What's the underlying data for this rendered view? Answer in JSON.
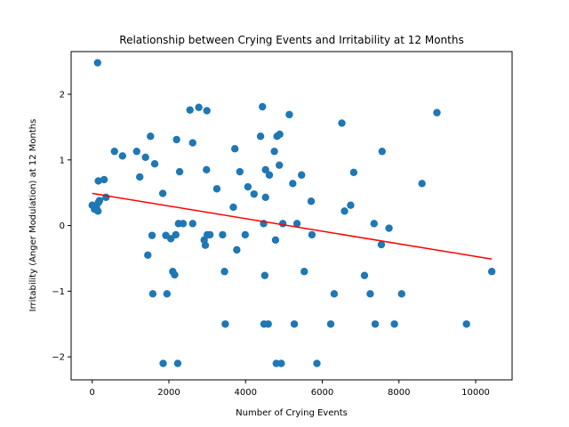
{
  "chart_data": {
    "type": "scatter",
    "title": "Relationship between Crying Events and Irritability at 12 Months",
    "xlabel": "Number of Crying Events",
    "ylabel": "Irritability (Anger Modulation) at 12 Months",
    "xlim": [
      -550,
      10950
    ],
    "ylim": [
      -2.35,
      2.65
    ],
    "x_ticks": [
      0,
      2000,
      4000,
      6000,
      8000,
      10000
    ],
    "x_tick_labels": [
      "0",
      "2000",
      "4000",
      "6000",
      "8000",
      "10000"
    ],
    "y_ticks": [
      -2,
      -1,
      0,
      1,
      2
    ],
    "y_tick_labels": [
      "−2",
      "−1",
      "0",
      "1",
      "2"
    ],
    "grid": false,
    "point_color": "#1f77b4",
    "trend_color": "#ff0000",
    "trend_line": {
      "x": [
        0,
        10420
      ],
      "y": [
        0.49,
        -0.51
      ]
    },
    "points": [
      {
        "x": 140,
        "y": 2.48
      },
      {
        "x": 0,
        "y": 0.31
      },
      {
        "x": 60,
        "y": 0.25
      },
      {
        "x": 110,
        "y": 0.27
      },
      {
        "x": 150,
        "y": 0.22
      },
      {
        "x": 160,
        "y": 0.35
      },
      {
        "x": 190,
        "y": 0.38
      },
      {
        "x": 160,
        "y": 0.68
      },
      {
        "x": 310,
        "y": 0.7
      },
      {
        "x": 360,
        "y": 0.43
      },
      {
        "x": 580,
        "y": 1.13
      },
      {
        "x": 790,
        "y": 1.06
      },
      {
        "x": 1160,
        "y": 1.13
      },
      {
        "x": 1240,
        "y": 0.74
      },
      {
        "x": 1390,
        "y": 1.04
      },
      {
        "x": 1450,
        "y": -0.45
      },
      {
        "x": 1520,
        "y": 1.36
      },
      {
        "x": 1560,
        "y": -0.15
      },
      {
        "x": 1580,
        "y": -1.04
      },
      {
        "x": 1630,
        "y": 0.94
      },
      {
        "x": 1840,
        "y": 0.49
      },
      {
        "x": 1850,
        "y": -2.1
      },
      {
        "x": 1920,
        "y": -0.15
      },
      {
        "x": 1950,
        "y": -1.04
      },
      {
        "x": 2050,
        "y": -0.2
      },
      {
        "x": 2100,
        "y": -0.7
      },
      {
        "x": 2150,
        "y": -0.75
      },
      {
        "x": 2180,
        "y": -0.14
      },
      {
        "x": 2200,
        "y": 1.31
      },
      {
        "x": 2230,
        "y": -2.1
      },
      {
        "x": 2250,
        "y": 0.03
      },
      {
        "x": 2280,
        "y": 0.82
      },
      {
        "x": 2370,
        "y": 0.03
      },
      {
        "x": 2550,
        "y": 1.76
      },
      {
        "x": 2620,
        "y": 1.26
      },
      {
        "x": 2620,
        "y": 0.03
      },
      {
        "x": 2780,
        "y": 1.8
      },
      {
        "x": 2920,
        "y": -0.22
      },
      {
        "x": 2950,
        "y": -0.3
      },
      {
        "x": 2980,
        "y": 0.85
      },
      {
        "x": 2990,
        "y": 1.75
      },
      {
        "x": 3000,
        "y": -0.14
      },
      {
        "x": 3070,
        "y": -0.14
      },
      {
        "x": 3250,
        "y": 0.56
      },
      {
        "x": 3400,
        "y": -0.14
      },
      {
        "x": 3450,
        "y": -0.7
      },
      {
        "x": 3470,
        "y": -1.5
      },
      {
        "x": 3680,
        "y": 0.28
      },
      {
        "x": 3720,
        "y": 1.17
      },
      {
        "x": 3770,
        "y": -0.37
      },
      {
        "x": 3850,
        "y": 0.82
      },
      {
        "x": 3990,
        "y": -0.14
      },
      {
        "x": 4060,
        "y": 0.59
      },
      {
        "x": 4220,
        "y": 0.48
      },
      {
        "x": 4390,
        "y": 1.36
      },
      {
        "x": 4440,
        "y": 1.81
      },
      {
        "x": 4470,
        "y": 0.03
      },
      {
        "x": 4480,
        "y": -1.5
      },
      {
        "x": 4500,
        "y": -0.76
      },
      {
        "x": 4520,
        "y": 0.85
      },
      {
        "x": 4520,
        "y": 0.43
      },
      {
        "x": 4590,
        "y": -1.5
      },
      {
        "x": 4620,
        "y": 0.77
      },
      {
        "x": 4750,
        "y": 1.13
      },
      {
        "x": 4780,
        "y": -0.22
      },
      {
        "x": 4800,
        "y": -2.1
      },
      {
        "x": 4820,
        "y": 1.36
      },
      {
        "x": 4880,
        "y": 0.92
      },
      {
        "x": 4890,
        "y": 1.39
      },
      {
        "x": 4930,
        "y": -2.1
      },
      {
        "x": 4970,
        "y": 0.03
      },
      {
        "x": 5140,
        "y": 1.69
      },
      {
        "x": 5230,
        "y": 0.64
      },
      {
        "x": 5270,
        "y": -1.5
      },
      {
        "x": 5340,
        "y": 0.03
      },
      {
        "x": 5460,
        "y": 0.77
      },
      {
        "x": 5530,
        "y": -0.7
      },
      {
        "x": 5710,
        "y": 0.37
      },
      {
        "x": 5730,
        "y": -0.14
      },
      {
        "x": 5860,
        "y": -2.1
      },
      {
        "x": 6220,
        "y": -1.5
      },
      {
        "x": 6310,
        "y": -1.04
      },
      {
        "x": 6510,
        "y": 1.56
      },
      {
        "x": 6580,
        "y": 0.22
      },
      {
        "x": 6740,
        "y": 0.31
      },
      {
        "x": 6820,
        "y": 0.81
      },
      {
        "x": 7100,
        "y": -0.76
      },
      {
        "x": 7250,
        "y": -1.04
      },
      {
        "x": 7350,
        "y": 0.03
      },
      {
        "x": 7380,
        "y": -1.5
      },
      {
        "x": 7540,
        "y": -0.29
      },
      {
        "x": 7560,
        "y": 1.13
      },
      {
        "x": 7740,
        "y": -0.04
      },
      {
        "x": 7880,
        "y": -1.5
      },
      {
        "x": 8070,
        "y": -1.04
      },
      {
        "x": 8600,
        "y": 0.64
      },
      {
        "x": 8990,
        "y": 1.72
      },
      {
        "x": 9760,
        "y": -1.5
      },
      {
        "x": 10420,
        "y": -0.7
      }
    ]
  }
}
